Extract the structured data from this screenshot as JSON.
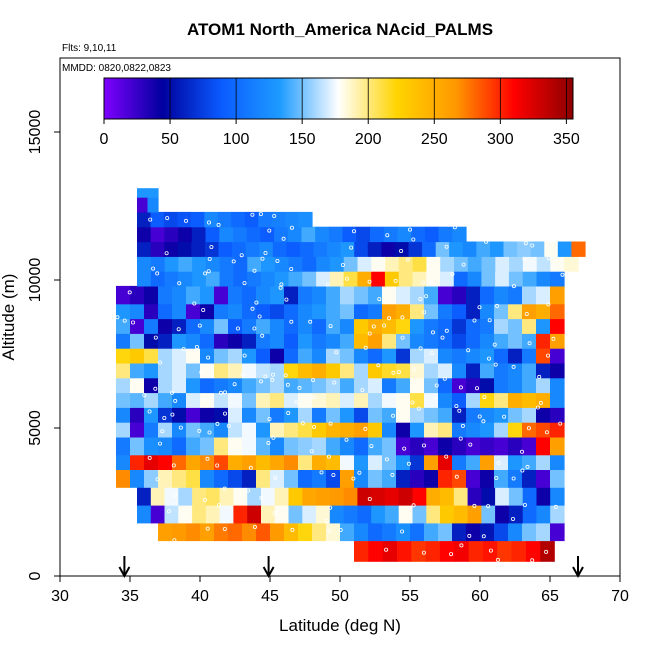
{
  "chart_data": {
    "type": "heatmap",
    "title": "ATOM1 North_America NAcid_PALMS",
    "annotations": {
      "flights": "Flts: 9,10,11",
      "dates": "MMDD: 0820,0822,0823"
    },
    "xlabel": "Latitude (deg N)",
    "ylabel": "Altitude (m)",
    "xlim": [
      30,
      70
    ],
    "ylim": [
      0,
      17500
    ],
    "xticks": [
      "30",
      "35",
      "40",
      "45",
      "50",
      "55",
      "60",
      "65",
      "70"
    ],
    "yticks": [
      "0",
      "5000",
      "10000",
      "15000"
    ],
    "colorbar": {
      "range": [
        0,
        355
      ],
      "tick_values": [
        0,
        50,
        100,
        150,
        200,
        250,
        300,
        350
      ],
      "tick_labels": [
        "0",
        "50",
        "100",
        "150",
        "200",
        "250",
        "300",
        "350"
      ],
      "stops": [
        "#7f00ff",
        "#00009e",
        "#0a5bff",
        "#1e9bff",
        "#ffffff",
        "#ffd400",
        "#ff9800",
        "#ff0000",
        "#8b0000"
      ]
    },
    "arrows_at_latitude": [
      34.6,
      44.9,
      67.0
    ],
    "bands": [
      {
        "alt": [
          500,
          1200
        ],
        "lat": [
          51,
          64.3
        ],
        "values": [
          300,
          310,
          320,
          305,
          295,
          300,
          310,
          315,
          300,
          305,
          295,
          300,
          310
        ]
      },
      {
        "alt": [
          500,
          1200
        ],
        "lat": [
          64.3,
          65.3
        ],
        "values": [
          340
        ]
      },
      {
        "alt": [
          1200,
          1800
        ],
        "lat": [
          37,
          66
        ],
        "values": [
          260,
          265,
          270,
          260,
          275,
          280,
          270,
          285,
          265,
          240,
          220,
          200,
          185,
          140,
          120,
          100,
          110,
          125,
          105,
          140,
          150,
          60,
          40,
          55,
          80,
          120,
          150,
          160,
          20
        ]
      },
      {
        "alt": [
          1800,
          2400
        ],
        "lat": [
          35.5,
          66
        ],
        "values": [
          120,
          20,
          165,
          180,
          200,
          190,
          175,
          300,
          330,
          190,
          180,
          150,
          170,
          185,
          120,
          110,
          100,
          130,
          140,
          180,
          150,
          200,
          230,
          240,
          260,
          150,
          40,
          60,
          100,
          120,
          160
        ]
      },
      {
        "alt": [
          2400,
          3000
        ],
        "lat": [
          35.5,
          66
        ],
        "values": [
          60,
          190,
          175,
          160,
          200,
          205,
          190,
          180,
          160,
          175,
          190,
          230,
          255,
          260,
          265,
          270,
          330,
          325,
          320,
          330,
          310,
          250,
          240,
          200,
          30,
          50,
          170,
          150,
          100,
          40,
          120
        ]
      },
      {
        "alt": [
          3000,
          3600
        ],
        "lat": [
          34,
          66
        ],
        "values": [
          270,
          120,
          155,
          190,
          200,
          210,
          120,
          100,
          80,
          60,
          200,
          170,
          150,
          100,
          110,
          80,
          260,
          120,
          150,
          140,
          60,
          30,
          40,
          300,
          290,
          20,
          40,
          140,
          110,
          60,
          20,
          150
        ]
      },
      {
        "alt": [
          3600,
          4100
        ],
        "lat": [
          34,
          66
        ],
        "values": [
          120,
          300,
          320,
          310,
          280,
          255,
          270,
          290,
          250,
          260,
          240,
          255,
          270,
          200,
          250,
          240,
          175,
          130,
          170,
          150,
          130,
          70,
          260,
          320,
          110,
          140,
          260,
          170,
          130,
          140,
          160,
          120
        ]
      },
      {
        "alt": [
          4100,
          4700
        ],
        "lat": [
          34,
          66
        ],
        "values": [
          110,
          150,
          125,
          120,
          100,
          140,
          150,
          200,
          180,
          175,
          145,
          120,
          150,
          155,
          160,
          140,
          120,
          100,
          140,
          150,
          20,
          30,
          20,
          40,
          30,
          20,
          25,
          20,
          30,
          20,
          310,
          260
        ]
      },
      {
        "alt": [
          4700,
          5200
        ],
        "lat": [
          34,
          66
        ],
        "values": [
          160,
          20,
          110,
          160,
          120,
          150,
          140,
          120,
          165,
          175,
          130,
          190,
          200,
          210,
          230,
          245,
          250,
          260,
          230,
          120,
          40,
          130,
          190,
          200,
          110,
          120,
          130,
          160,
          220,
          280,
          290,
          300
        ]
      },
      {
        "alt": [
          5200,
          5700
        ],
        "lat": [
          34,
          66
        ],
        "values": [
          120,
          30,
          130,
          70,
          50,
          20,
          40,
          50,
          170,
          120,
          150,
          110,
          130,
          160,
          110,
          150,
          130,
          80,
          150,
          140,
          180,
          160,
          150,
          140,
          60,
          110,
          120,
          130,
          150,
          160,
          40,
          30
        ]
      },
      {
        "alt": [
          5700,
          6200
        ],
        "lat": [
          34,
          66
        ],
        "values": [
          150,
          145,
          160,
          140,
          120,
          170,
          180,
          165,
          175,
          150,
          190,
          200,
          170,
          180,
          185,
          190,
          170,
          190,
          160,
          175,
          180,
          210,
          175,
          120,
          90,
          160,
          220,
          200,
          250,
          240,
          250,
          120
        ]
      },
      {
        "alt": [
          6200,
          6700
        ],
        "lat": [
          34,
          66
        ],
        "values": [
          160,
          180,
          40,
          160,
          170,
          130,
          100,
          110,
          120,
          140,
          150,
          160,
          140,
          145,
          150,
          160,
          140,
          160,
          170,
          110,
          140,
          180,
          150,
          100,
          20,
          30,
          50,
          110,
          120,
          140,
          160,
          120
        ]
      },
      {
        "alt": [
          6700,
          7200
        ],
        "lat": [
          34,
          66
        ],
        "values": [
          200,
          140,
          130,
          160,
          170,
          150,
          180,
          200,
          190,
          175,
          165,
          160,
          220,
          240,
          250,
          230,
          200,
          160,
          230,
          215,
          210,
          185,
          160,
          170,
          120,
          60,
          140,
          110,
          120,
          140,
          60,
          40
        ]
      },
      {
        "alt": [
          7200,
          7700
        ],
        "lat": [
          34,
          66
        ],
        "values": [
          220,
          230,
          210,
          160,
          170,
          180,
          120,
          150,
          160,
          130,
          90,
          40,
          100,
          140,
          120,
          160,
          150,
          120,
          100,
          130,
          70,
          160,
          170,
          120,
          110,
          120,
          130,
          100,
          60,
          110,
          290,
          20
        ]
      },
      {
        "alt": [
          7700,
          8200
        ],
        "lat": [
          34,
          66
        ],
        "values": [
          110,
          150,
          50,
          60,
          130,
          120,
          100,
          30,
          40,
          60,
          110,
          120,
          90,
          130,
          110,
          120,
          140,
          240,
          260,
          200,
          150,
          120,
          110,
          100,
          80,
          100,
          120,
          140,
          150,
          140,
          300,
          260
        ]
      },
      {
        "alt": [
          8200,
          8700
        ],
        "lat": [
          34,
          66
        ],
        "values": [
          140,
          20,
          110,
          40,
          60,
          100,
          120,
          150,
          90,
          110,
          140,
          120,
          100,
          120,
          100,
          140,
          120,
          230,
          250,
          240,
          220,
          130,
          110,
          100,
          70,
          100,
          110,
          160,
          150,
          200,
          130,
          310
        ]
      },
      {
        "alt": [
          8700,
          9200
        ],
        "lat": [
          34,
          66
        ],
        "values": [
          130,
          120,
          30,
          100,
          120,
          20,
          40,
          110,
          120,
          100,
          90,
          80,
          100,
          120,
          130,
          140,
          150,
          100,
          110,
          260,
          250,
          200,
          150,
          110,
          90,
          60,
          120,
          150,
          200,
          260,
          250,
          280
        ]
      },
      {
        "alt": [
          9200,
          9800
        ],
        "lat": [
          34,
          66
        ],
        "values": [
          20,
          30,
          40,
          110,
          120,
          140,
          130,
          20,
          110,
          100,
          120,
          130,
          60,
          110,
          120,
          140,
          160,
          150,
          140,
          180,
          170,
          160,
          140,
          20,
          30,
          60,
          100,
          120,
          110,
          160,
          170,
          260
        ]
      },
      {
        "alt": [
          9800,
          10300
        ],
        "lat": [
          35.5,
          66
        ],
        "values": [
          120,
          100,
          110,
          120,
          130,
          140,
          110,
          100,
          110,
          120,
          130,
          140,
          150,
          170,
          190,
          210,
          250,
          310,
          230,
          200,
          190,
          180,
          170,
          100,
          120,
          150,
          170,
          150,
          140,
          120,
          110
        ]
      },
      {
        "alt": [
          10300,
          10800
        ],
        "lat": [
          35.5,
          67
        ],
        "values": [
          120,
          110,
          130,
          140,
          130,
          120,
          110,
          100,
          140,
          130,
          120,
          110,
          100,
          120,
          130,
          150,
          170,
          180,
          190,
          200,
          210,
          180,
          160,
          150,
          140,
          150,
          170,
          160,
          175,
          165,
          180,
          185
        ]
      },
      {
        "alt": [
          10800,
          11300
        ],
        "lat": [
          35.5,
          67.5
        ],
        "values": [
          60,
          30,
          40,
          50,
          60,
          70,
          90,
          100,
          110,
          120,
          100,
          90,
          100,
          110,
          120,
          130,
          80,
          60,
          40,
          50,
          70,
          100,
          150,
          130,
          120,
          140,
          130,
          150,
          155,
          150,
          180,
          130,
          280
        ]
      },
      {
        "alt": [
          11300,
          11800
        ],
        "lat": [
          35.5,
          59
        ],
        "values": [
          40,
          20,
          30,
          40,
          60,
          90,
          120,
          110,
          100,
          90,
          110,
          120,
          140,
          120,
          110,
          90,
          80,
          100,
          110,
          120,
          100,
          90,
          110,
          120
        ]
      },
      {
        "alt": [
          11800,
          12300
        ],
        "lat": [
          35.5,
          48
        ],
        "values": [
          60,
          90,
          80,
          85,
          90,
          120,
          110,
          100,
          90,
          110,
          115,
          120,
          125
        ]
      },
      {
        "alt": [
          12300,
          12800
        ],
        "lat": [
          35.5,
          37
        ],
        "values": [
          20,
          120
        ]
      },
      {
        "alt": [
          12800,
          13100
        ],
        "lat": [
          35.5,
          37
        ],
        "values": [
          130,
          130
        ]
      }
    ]
  }
}
